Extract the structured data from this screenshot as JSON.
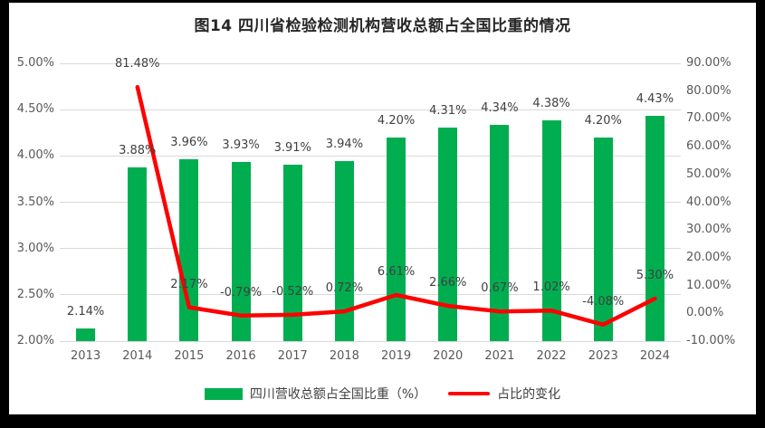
{
  "chart_data": {
    "type": "bar+line",
    "title": "图14  四川省检验检测机构营收总额占全国比重的情况",
    "categories": [
      "2013",
      "2014",
      "2015",
      "2016",
      "2017",
      "2018",
      "2019",
      "2020",
      "2021",
      "2022",
      "2023",
      "2024"
    ],
    "series": [
      {
        "name": "四川营收总额占全国比重（%）",
        "type": "bar",
        "axis": "left",
        "color": "#00AE50",
        "values": [
          2.14,
          3.88,
          3.96,
          3.93,
          3.91,
          3.94,
          4.2,
          4.31,
          4.34,
          4.38,
          4.2,
          4.43
        ],
        "labels": [
          "2.14%",
          "3.88%",
          "3.96%",
          "3.93%",
          "3.91%",
          "3.94%",
          "4.20%",
          "4.31%",
          "4.34%",
          "4.38%",
          "4.20%",
          "4.43%"
        ]
      },
      {
        "name": "占比的变化",
        "type": "line",
        "axis": "right",
        "color": "#FE0000",
        "values": [
          null,
          81.48,
          2.17,
          -0.79,
          -0.52,
          0.72,
          6.61,
          2.66,
          0.67,
          1.02,
          -4.08,
          5.3
        ],
        "labels": [
          null,
          "81.48%",
          "2.17%",
          "-0.79%",
          "-0.52%",
          "0.72%",
          "6.61%",
          "2.66%",
          "0.67%",
          "1.02%",
          "-4.08%",
          "5.30%"
        ]
      }
    ],
    "left_axis": {
      "min": 2.0,
      "max": 5.0,
      "step": 0.5,
      "ticks_top_to_bottom": [
        "5.00%",
        "4.50%",
        "4.00%",
        "3.50%",
        "3.00%",
        "2.50%",
        "2.00%"
      ]
    },
    "right_axis": {
      "min": -10,
      "max": 90,
      "step": 10,
      "ticks_top_to_bottom": [
        "90.00%",
        "80.00%",
        "70.00%",
        "60.00%",
        "50.00%",
        "40.00%",
        "30.00%",
        "20.00%",
        "10.00%",
        "0.00%",
        "-10.00%"
      ]
    },
    "grid": "horizontal",
    "gridline_color": "#d9d9d9",
    "legend_position": "bottom"
  }
}
